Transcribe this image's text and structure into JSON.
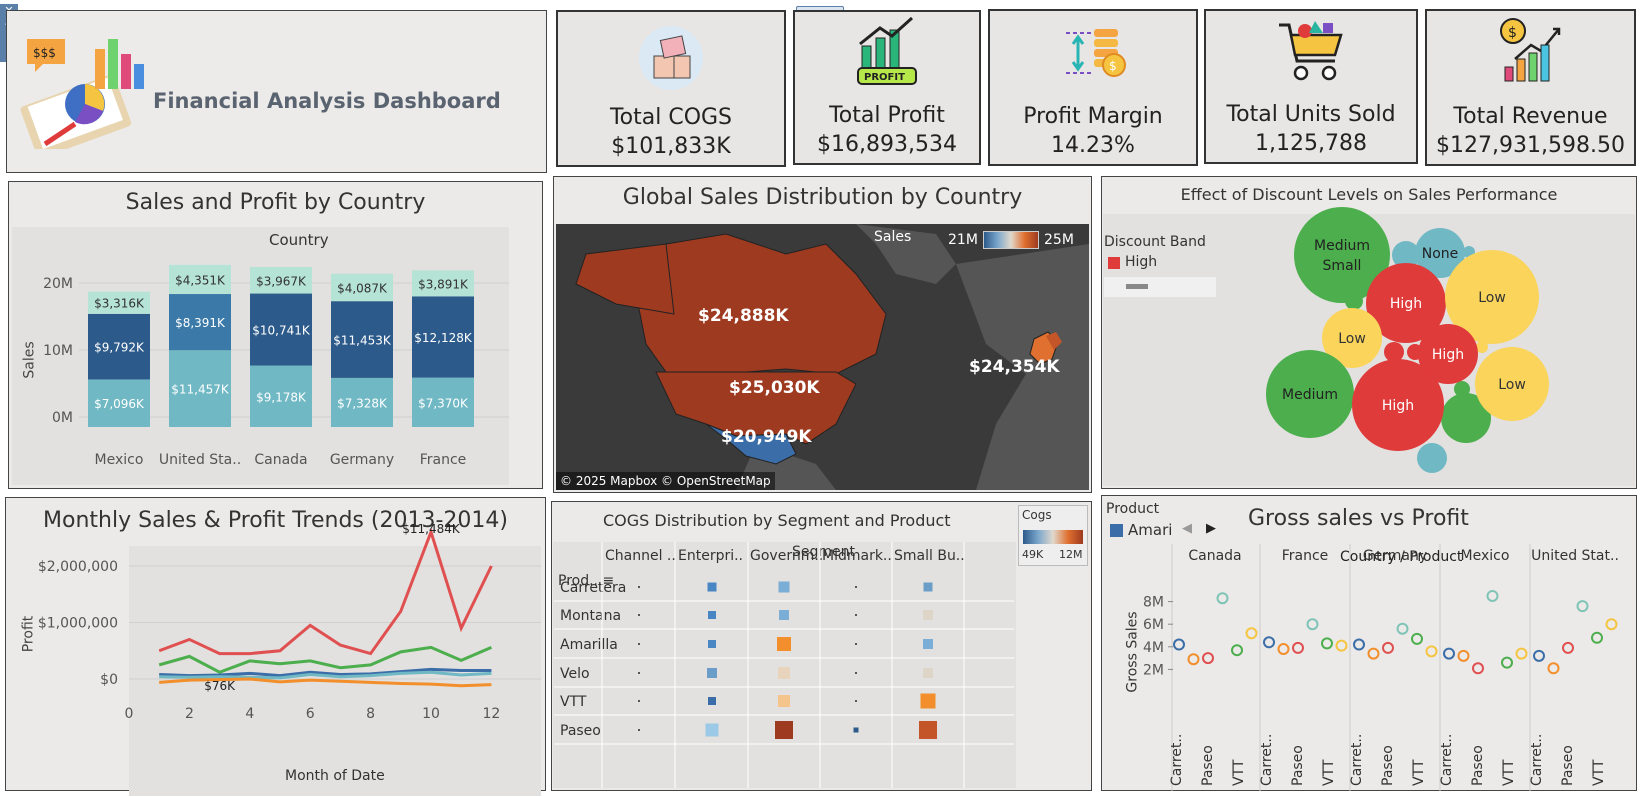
{
  "header": {
    "title": "Financial Analysis Dashboard"
  },
  "kpis": [
    {
      "label": "Total COGS",
      "value": "$101,833K",
      "icon": "box-icon"
    },
    {
      "label": "Total Profit",
      "value": "$16,893,534",
      "icon": "profit-chart-icon"
    },
    {
      "label": "Profit Margin",
      "value": "14.23%",
      "icon": "coins-icon"
    },
    {
      "label": "Total Units Sold",
      "value": "1,125,788",
      "icon": "cart-icon"
    },
    {
      "label": "Total Revenue",
      "value": "$127,931,598.50",
      "icon": "revenue-chart-icon"
    }
  ],
  "bar_panel": {
    "title": "Sales and Profit by Country",
    "header": "Country",
    "ylabel": "Sales",
    "yticks": [
      "20M",
      "10M",
      "0M"
    ],
    "categories": [
      "Mexico",
      "United Sta..",
      "Canada",
      "Germany",
      "France"
    ],
    "top": [
      "$3,316K",
      "$4,351K",
      "$3,967K",
      "$4,087K",
      "$3,891K"
    ],
    "mid": [
      "$9,792K",
      "$8,391K",
      "$10,741K",
      "$11,453K",
      "$12,128K"
    ],
    "bot": [
      "$7,096K",
      "$11,457K",
      "$9,178K",
      "$7,328K",
      "$7,370K"
    ]
  },
  "map_panel": {
    "title": "Global Sales Distribution by Country",
    "legend_title": "Sales",
    "legend_min": "21M",
    "legend_max": "25M",
    "labels": [
      "$24,888K",
      "$25,030K",
      "$20,949K",
      "$24,354K"
    ],
    "attribution": "© 2025 Mapbox © OpenStreetMap"
  },
  "bubble_panel": {
    "title": "Effect of Discount Levels on Sales Performance",
    "legend_title": "Discount Band",
    "legend_item": "High",
    "bubbles": [
      "Medium Small",
      "None",
      "High",
      "Low",
      "Low",
      "High",
      "Medium",
      "High",
      "Low"
    ]
  },
  "line_panel": {
    "title": "Monthly Sales & Profit Trends (2013-2014)",
    "ylabel": "Profit",
    "xlabel": "Month of Date",
    "yticks": [
      "$2,000,000",
      "$1,000,000",
      "$0"
    ],
    "xticks": [
      "0",
      "2",
      "4",
      "6",
      "8",
      "10",
      "12"
    ],
    "max_label": "$11,484K",
    "min_label": "$76K"
  },
  "heat_panel": {
    "title": "COGS Distribution by Segment and Product",
    "legend_title": "Cogs",
    "legend_min": "49K",
    "legend_max": "12M",
    "segment_header": "Segment",
    "product_header": "Prod..",
    "columns": [
      "Channel ..",
      "Enterpri..",
      "Governm..",
      "Midmark..",
      "Small Bu.."
    ],
    "rows": [
      "Carretera",
      "Montana",
      "Amarilla",
      "Velo",
      "VTT",
      "Paseo"
    ]
  },
  "scatter_panel": {
    "title": "Gross sales vs Profit",
    "legend_title": "Product",
    "legend_item": "Amari",
    "header": "Country / Product",
    "countries": [
      "Canada",
      "France",
      "Germany",
      "Mexico",
      "United Stat.."
    ],
    "ylabel": "Gross Sales",
    "yticks": [
      "8M",
      "6M",
      "4M",
      "2M"
    ],
    "products": [
      "Carret..",
      "Paseo",
      "VTT"
    ]
  },
  "colors": {
    "blue_dark": "#2c5a8a",
    "blue_mid": "#3b7aa8",
    "teal": "#6fb8c4",
    "mint": "#b5e3d6",
    "map_fill": "#9e3a20",
    "red": "#e03b3b",
    "green": "#4cae4c",
    "yellow": "#fbd45c"
  }
}
